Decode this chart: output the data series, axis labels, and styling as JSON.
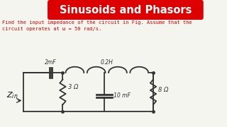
{
  "title": "Sinusoids and Phasors",
  "title_bg": "#dd0000",
  "title_fg": "#ffffff",
  "problem_line1": "Find the input impedance of the circuit in Fig. Assume that the",
  "problem_line2": "circuit operates at ω = 50 rad/s.",
  "bg_color": "#f5f5f0",
  "circuit_color": "#333333",
  "label_cap1": "2mF",
  "label_ind": "0.2H",
  "label_res1": "3 Ω",
  "label_cap2": "10 mF",
  "label_res2": "8 Ω",
  "problem_color": "#cc0000",
  "zin_color": "#111111",
  "fig_w": 3.2,
  "fig_h": 1.8,
  "dpi": 100
}
